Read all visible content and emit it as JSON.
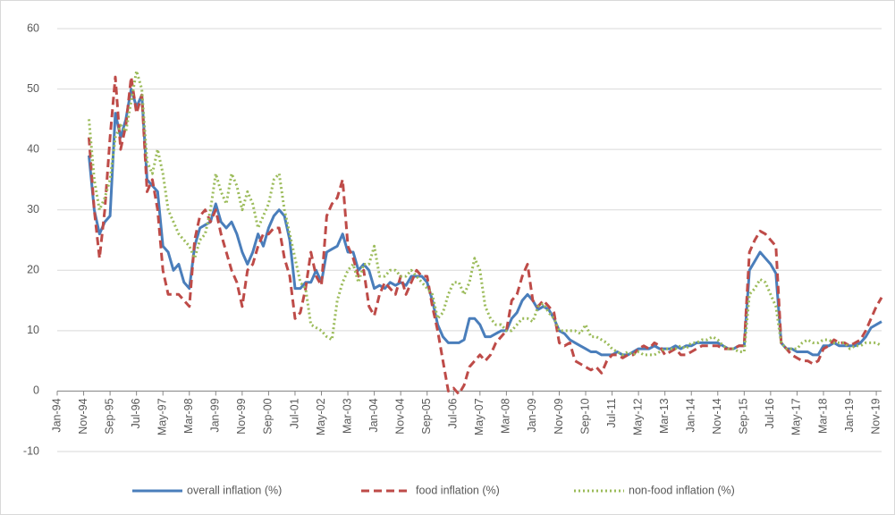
{
  "chart_data": {
    "type": "line",
    "categories": [
      "Jan-94",
      null,
      null,
      null,
      null,
      "Nov-94",
      null,
      null,
      null,
      null,
      "Sep-95",
      null,
      null,
      null,
      null,
      "Jul-96",
      null,
      null,
      null,
      null,
      "May-97",
      null,
      null,
      null,
      null,
      "Mar-98",
      null,
      null,
      null,
      null,
      "Jan-99",
      null,
      null,
      null,
      null,
      "Nov-99",
      null,
      null,
      null,
      null,
      "Sep-00",
      null,
      null,
      null,
      null,
      "Jul-01",
      null,
      null,
      null,
      null,
      "May-02",
      null,
      null,
      null,
      null,
      "Mar-03",
      null,
      null,
      null,
      null,
      "Jan-04",
      null,
      null,
      null,
      null,
      "Nov-04",
      null,
      null,
      null,
      null,
      "Sep-05",
      null,
      null,
      null,
      null,
      "Jul-06",
      null,
      null,
      null,
      null,
      "May-07",
      null,
      null,
      null,
      null,
      "Mar-08",
      null,
      null,
      null,
      null,
      "Jan-09",
      null,
      null,
      null,
      null,
      "Nov-09",
      null,
      null,
      null,
      null,
      "Sep-10",
      null,
      null,
      null,
      null,
      "Jul-11",
      null,
      null,
      null,
      null,
      "May-12",
      null,
      null,
      null,
      null,
      "Mar-13",
      null,
      null,
      null,
      null,
      "Jan-14",
      null,
      null,
      null,
      null,
      "Nov-14",
      null,
      null,
      null,
      null,
      "Sep-15",
      null,
      null,
      null,
      null,
      "Jul-16",
      null,
      null,
      null,
      null,
      "May-17",
      null,
      null,
      null,
      null,
      "Mar-18",
      null,
      null,
      null,
      null,
      "Jan-19",
      null,
      null,
      null,
      null,
      "Nov-19",
      null
    ],
    "series": [
      {
        "name": "overall inflation (%)",
        "color": "#4a7ebb",
        "line_style": "solid",
        "values": [
          null,
          null,
          null,
          null,
          null,
          null,
          39,
          30,
          26,
          28,
          29,
          46,
          42,
          45,
          50,
          47,
          49,
          35,
          34,
          33,
          24,
          23,
          20,
          21,
          18,
          17,
          24,
          27,
          27.5,
          28,
          31,
          28,
          27,
          28,
          26,
          23,
          21,
          23,
          26,
          24,
          27,
          29,
          30,
          29,
          25,
          17,
          17,
          18,
          18,
          20,
          18,
          23,
          23.5,
          24,
          26,
          23,
          23,
          20,
          21,
          20,
          17,
          17.5,
          17,
          18,
          17.5,
          18,
          17.5,
          19,
          19,
          19,
          18,
          15,
          11,
          9,
          8,
          8,
          8,
          8.5,
          12,
          12,
          11,
          9,
          9,
          9.5,
          10,
          10,
          12,
          13,
          15,
          16,
          15,
          13.5,
          14,
          13.5,
          12,
          10,
          9.5,
          8.5,
          8,
          7.5,
          7,
          6.5,
          6.5,
          6,
          6,
          6,
          6.5,
          6,
          6,
          6.5,
          7,
          7,
          7,
          7.5,
          7,
          7,
          7,
          7.5,
          7,
          7.5,
          7.5,
          8,
          8,
          8,
          8,
          8,
          7.5,
          7,
          7,
          7.5,
          7.5,
          20,
          21.5,
          23,
          22,
          21,
          19.5,
          8,
          7,
          7,
          6.5,
          6.5,
          6.5,
          6,
          6,
          7.5,
          7.5,
          8,
          7.5,
          7.5,
          7.5,
          7.5,
          8,
          9,
          10.5,
          11,
          11.5
        ]
      },
      {
        "name": "food inflation (%)",
        "color": "#be4b48",
        "line_style": "dashed",
        "values": [
          null,
          null,
          null,
          null,
          null,
          null,
          42,
          30,
          22,
          30,
          42,
          52,
          40,
          44,
          52,
          46,
          49,
          33,
          35,
          30,
          20,
          16,
          16,
          16,
          15,
          14,
          25,
          29,
          30,
          28,
          30,
          26,
          23,
          20,
          18,
          14,
          20,
          21,
          24,
          26,
          26,
          27,
          27,
          22,
          19,
          12,
          13,
          17,
          23,
          19,
          17.5,
          29,
          31,
          32,
          35,
          24,
          22,
          19,
          20,
          14,
          12.5,
          16,
          18,
          17,
          16,
          19,
          16,
          18,
          20,
          19,
          19,
          14,
          10,
          5,
          0,
          0.5,
          -0.5,
          1,
          4,
          5,
          6,
          5,
          6,
          8,
          9,
          10,
          15,
          16,
          19,
          21,
          15,
          14,
          15,
          14,
          13,
          8,
          7.5,
          8,
          5,
          4.5,
          4,
          3.5,
          4,
          3,
          5,
          6,
          6,
          5.5,
          6,
          6,
          7,
          7.5,
          7,
          8,
          7.5,
          6,
          6.5,
          7,
          6,
          6,
          6.5,
          7,
          7.5,
          7.5,
          7.5,
          7.5,
          7,
          7,
          7,
          7.5,
          7.5,
          23,
          25,
          26.5,
          26,
          25,
          24,
          8,
          7,
          6,
          5.5,
          5,
          5,
          4.5,
          5,
          7,
          7.5,
          8.5,
          8,
          8,
          7.5,
          8,
          8.5,
          10,
          12,
          14,
          15.5
        ]
      },
      {
        "name": "non-food inflation (%)",
        "color": "#9bbb59",
        "line_style": "dotted",
        "values": [
          null,
          null,
          null,
          null,
          null,
          null,
          45,
          35,
          30,
          32,
          35,
          42,
          44,
          43,
          48,
          53,
          50,
          38,
          36,
          40,
          36,
          30,
          28,
          26,
          25,
          24,
          22,
          25,
          26,
          30,
          36,
          33,
          31,
          36,
          34,
          30,
          33,
          31,
          27,
          29,
          31,
          35,
          36,
          30,
          26,
          22,
          18,
          17,
          11,
          10.5,
          10,
          9,
          8.5,
          15,
          18,
          20,
          21,
          18,
          21,
          21,
          24,
          19,
          19,
          20,
          20,
          19,
          19,
          20,
          19,
          18,
          17,
          16,
          12,
          13,
          16,
          18,
          18,
          16,
          18,
          22,
          20,
          14,
          12,
          11,
          11,
          10,
          10,
          11,
          12,
          12,
          11.5,
          14,
          14.5,
          13,
          12,
          10,
          10,
          10,
          10,
          9.5,
          11,
          9,
          9,
          8.5,
          8,
          7,
          6.5,
          6,
          6.5,
          6,
          6.5,
          6,
          6,
          6,
          6.5,
          7,
          7,
          7,
          7.5,
          7,
          8,
          8,
          8.5,
          8.5,
          9,
          8.5,
          7.5,
          7,
          7,
          6.5,
          6.5,
          16,
          17,
          18.5,
          18,
          16,
          14,
          8,
          7,
          7,
          7,
          8,
          8.5,
          8,
          8,
          8.5,
          8.5,
          8,
          8,
          8,
          7,
          7.5,
          7.5,
          8,
          8,
          8,
          7.5
        ]
      }
    ],
    "ylim": [
      -10,
      60
    ],
    "yticks": [
      -10,
      0,
      10,
      20,
      30,
      40,
      50,
      60
    ],
    "grid": true,
    "legend": "bottom"
  }
}
